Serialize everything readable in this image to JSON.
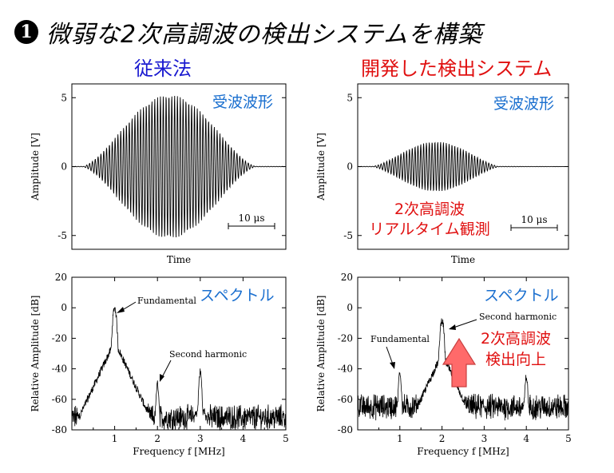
{
  "headline": {
    "number": "1",
    "text": "微弱な2次高調波の検出システムを構築"
  },
  "columns": {
    "left_title": "従来法",
    "right_title": "開発した検出システム"
  },
  "colors": {
    "blue_label": "#1a6fcf",
    "red_label": "#e01010",
    "left_title": "#1a1ad0",
    "arrow_fill": "#ff6a6a"
  },
  "annotations": {
    "waveform_label": "受波波形",
    "spectrum_label": "スペクトル",
    "realtime_line1": "2次高調波",
    "realtime_line2": "リアルタイム観測",
    "detect_line1": "2次高調波",
    "detect_line2": "検出向上",
    "fundamental": "Fundamental",
    "second_harmonic": "Second harmonic",
    "scale_bar": "10 μs",
    "up_arrow_icon": "up-arrow-icon"
  },
  "chart_data": [
    {
      "id": "left-waveform",
      "type": "line",
      "xlabel": "Time",
      "ylabel": "Amplitude [V]",
      "ylim": [
        -6,
        6
      ],
      "yticks": [
        -5,
        0,
        5
      ],
      "xticks": [],
      "grid": false,
      "series": [
        {
          "envelope_peak_V": 5.2,
          "oscillation": "burst"
        }
      ]
    },
    {
      "id": "right-waveform",
      "type": "line",
      "xlabel": "Time",
      "ylabel": "Amplitude [V]",
      "ylim": [
        -6,
        6
      ],
      "yticks": [
        -5,
        0,
        5
      ],
      "xticks": [],
      "grid": false,
      "series": [
        {
          "envelope_peak_V": 1.8,
          "oscillation": "burst"
        }
      ]
    },
    {
      "id": "left-spectrum",
      "type": "line",
      "xlabel": "Frequency f [MHz]",
      "ylabel": "Relative Amplitude [dB]",
      "xlim": [
        0,
        5
      ],
      "ylim": [
        -80,
        20
      ],
      "xticks": [
        1,
        2,
        3,
        4,
        5
      ],
      "yticks": [
        20,
        0,
        -20,
        -40,
        -60,
        -80
      ],
      "grid": false,
      "peaks": [
        {
          "x": 1.0,
          "y": 0
        },
        {
          "x": 2.0,
          "y": -50
        },
        {
          "x": 3.0,
          "y": -42
        }
      ],
      "noise_floor": -72
    },
    {
      "id": "right-spectrum",
      "type": "line",
      "xlabel": "Frequency f [MHz]",
      "ylabel": "Relative Amplitude [dB]",
      "xlim": [
        0,
        5
      ],
      "ylim": [
        -80,
        20
      ],
      "xticks": [
        1,
        2,
        3,
        4,
        5
      ],
      "yticks": [
        20,
        0,
        -20,
        -40,
        -60,
        -80
      ],
      "grid": false,
      "peaks": [
        {
          "x": 1.0,
          "y": -42
        },
        {
          "x": 2.0,
          "y": -8
        },
        {
          "x": 3.0,
          "y": -68
        },
        {
          "x": 4.0,
          "y": -45
        }
      ],
      "noise_floor": -65
    }
  ]
}
